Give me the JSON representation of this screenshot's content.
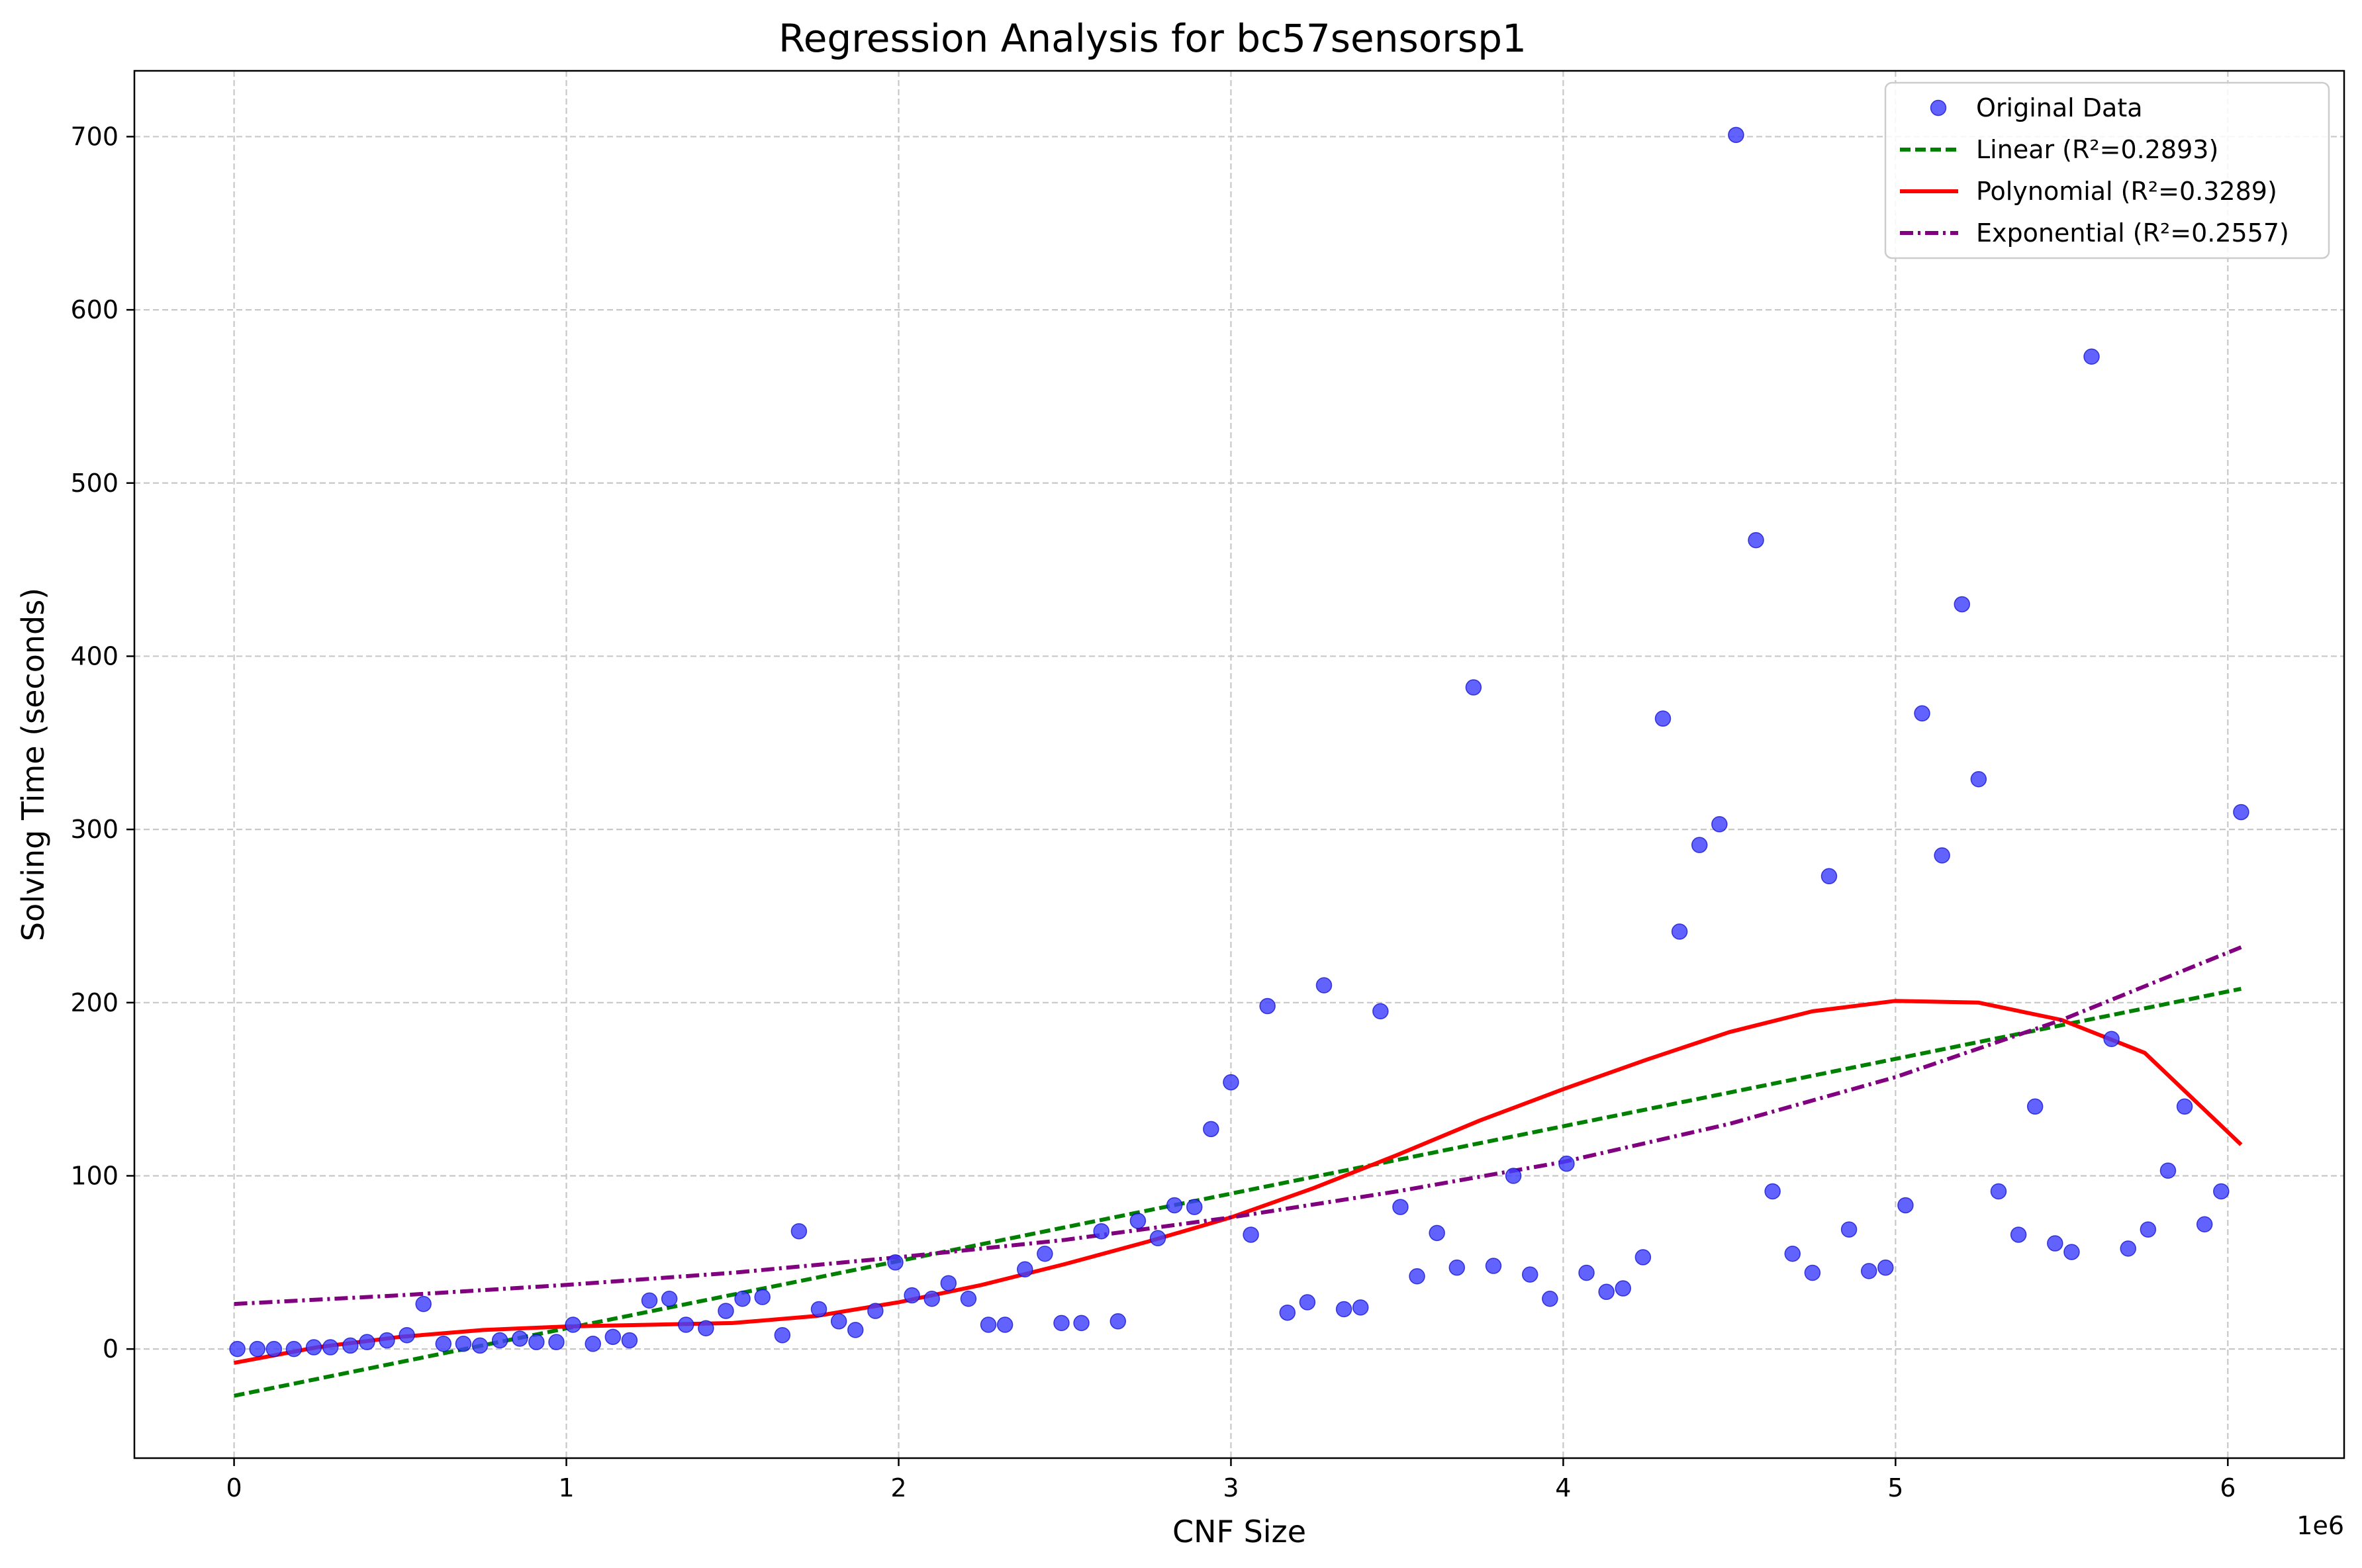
{
  "chart_data": {
    "type": "scatter",
    "title": "Regression Analysis for bc57sensorsp1",
    "xlabel": "CNF Size",
    "ylabel": "Solving Time (seconds)",
    "x_scale_label": "1e6",
    "xlim": [
      -0.3,
      6.35
    ],
    "ylim": [
      -63,
      738
    ],
    "x_ticks": [
      0,
      1,
      2,
      3,
      4,
      5,
      6
    ],
    "x_tick_labels": [
      "0",
      "1",
      "2",
      "3",
      "4",
      "5",
      "6"
    ],
    "y_ticks": [
      0,
      100,
      200,
      300,
      400,
      500,
      600,
      700
    ],
    "y_tick_labels": [
      "0",
      "100",
      "200",
      "300",
      "400",
      "500",
      "600",
      "700"
    ],
    "grid": true,
    "legend_position": "top-right",
    "colors": {
      "points": "#3f3fff",
      "points_edge": "#0000cc",
      "linear": "#008000",
      "polynomial": "#ff0000",
      "exponential": "#800080",
      "grid": "#c8c8c8"
    },
    "series": [
      {
        "name": "Original Data",
        "kind": "scatter",
        "points": [
          [
            0.01,
            0
          ],
          [
            0.07,
            0
          ],
          [
            0.12,
            0
          ],
          [
            0.18,
            0
          ],
          [
            0.24,
            1
          ],
          [
            0.29,
            1
          ],
          [
            0.35,
            2
          ],
          [
            0.4,
            4
          ],
          [
            0.46,
            5
          ],
          [
            0.52,
            8
          ],
          [
            0.57,
            26
          ],
          [
            0.63,
            3
          ],
          [
            0.69,
            3
          ],
          [
            0.74,
            2
          ],
          [
            0.8,
            5
          ],
          [
            0.86,
            6
          ],
          [
            0.91,
            4
          ],
          [
            0.97,
            4
          ],
          [
            1.02,
            14
          ],
          [
            1.08,
            3
          ],
          [
            1.14,
            7
          ],
          [
            1.19,
            5
          ],
          [
            1.25,
            28
          ],
          [
            1.31,
            29
          ],
          [
            1.36,
            14
          ],
          [
            1.42,
            12
          ],
          [
            1.48,
            22
          ],
          [
            1.53,
            29
          ],
          [
            1.59,
            30
          ],
          [
            1.65,
            8
          ],
          [
            1.7,
            68
          ],
          [
            1.76,
            23
          ],
          [
            1.82,
            16
          ],
          [
            1.87,
            11
          ],
          [
            1.93,
            22
          ],
          [
            1.99,
            50
          ],
          [
            2.04,
            31
          ],
          [
            2.1,
            29
          ],
          [
            2.15,
            38
          ],
          [
            2.21,
            29
          ],
          [
            2.27,
            14
          ],
          [
            2.32,
            14
          ],
          [
            2.38,
            46
          ],
          [
            2.44,
            55
          ],
          [
            2.49,
            15
          ],
          [
            2.55,
            15
          ],
          [
            2.61,
            68
          ],
          [
            2.66,
            16
          ],
          [
            2.72,
            74
          ],
          [
            2.78,
            64
          ],
          [
            2.83,
            83
          ],
          [
            2.89,
            82
          ],
          [
            2.94,
            127
          ],
          [
            3.0,
            154
          ],
          [
            3.06,
            66
          ],
          [
            3.11,
            198
          ],
          [
            3.17,
            21
          ],
          [
            3.23,
            27
          ],
          [
            3.28,
            210
          ],
          [
            3.34,
            23
          ],
          [
            3.39,
            24
          ],
          [
            3.45,
            195
          ],
          [
            3.51,
            82
          ],
          [
            3.56,
            42
          ],
          [
            3.62,
            67
          ],
          [
            3.68,
            47
          ],
          [
            3.73,
            382
          ],
          [
            3.79,
            48
          ],
          [
            3.85,
            100
          ],
          [
            3.9,
            43
          ],
          [
            3.96,
            29
          ],
          [
            4.01,
            107
          ],
          [
            4.07,
            44
          ],
          [
            4.13,
            33
          ],
          [
            4.18,
            35
          ],
          [
            4.24,
            53
          ],
          [
            4.3,
            364
          ],
          [
            4.35,
            241
          ],
          [
            4.41,
            291
          ],
          [
            4.47,
            303
          ],
          [
            4.52,
            701
          ],
          [
            4.58,
            467
          ],
          [
            4.63,
            91
          ],
          [
            4.69,
            55
          ],
          [
            4.75,
            44
          ],
          [
            4.8,
            273
          ],
          [
            4.86,
            69
          ],
          [
            4.92,
            45
          ],
          [
            4.97,
            47
          ],
          [
            5.03,
            83
          ],
          [
            5.08,
            367
          ],
          [
            5.14,
            285
          ],
          [
            5.2,
            430
          ],
          [
            5.25,
            329
          ],
          [
            5.31,
            91
          ],
          [
            5.37,
            66
          ],
          [
            5.42,
            140
          ],
          [
            5.48,
            61
          ],
          [
            5.53,
            56
          ],
          [
            5.59,
            573
          ],
          [
            5.65,
            179
          ],
          [
            5.7,
            58
          ],
          [
            5.76,
            69
          ],
          [
            5.82,
            103
          ],
          [
            5.87,
            140
          ],
          [
            5.93,
            72
          ],
          [
            5.98,
            91
          ],
          [
            6.04,
            310
          ]
        ]
      },
      {
        "name": "Linear (R²=0.2893)",
        "kind": "line",
        "dash": "dashed",
        "points": [
          [
            0.0,
            -27
          ],
          [
            6.04,
            208
          ]
        ]
      },
      {
        "name": "Polynomial (R²=0.3289)",
        "kind": "line",
        "dash": "solid",
        "points": [
          [
            0.0,
            -8
          ],
          [
            0.25,
            1
          ],
          [
            0.5,
            7
          ],
          [
            0.75,
            11
          ],
          [
            1.0,
            13
          ],
          [
            1.25,
            14
          ],
          [
            1.5,
            15
          ],
          [
            1.75,
            19
          ],
          [
            2.0,
            27
          ],
          [
            2.25,
            37
          ],
          [
            2.5,
            49
          ],
          [
            2.75,
            62
          ],
          [
            3.0,
            76
          ],
          [
            3.25,
            93
          ],
          [
            3.5,
            112
          ],
          [
            3.75,
            132
          ],
          [
            4.0,
            150
          ],
          [
            4.25,
            167
          ],
          [
            4.5,
            183
          ],
          [
            4.75,
            195
          ],
          [
            5.0,
            201
          ],
          [
            5.25,
            200
          ],
          [
            5.5,
            190
          ],
          [
            5.75,
            171
          ],
          [
            6.04,
            118
          ]
        ]
      },
      {
        "name": "Exponential (R²=0.2557)",
        "kind": "line",
        "dash": "dash-dot",
        "points": [
          [
            0.0,
            26
          ],
          [
            0.5,
            31
          ],
          [
            1.0,
            37
          ],
          [
            1.5,
            44
          ],
          [
            2.0,
            53
          ],
          [
            2.5,
            63
          ],
          [
            3.0,
            76
          ],
          [
            3.5,
            91
          ],
          [
            4.0,
            108
          ],
          [
            4.5,
            130
          ],
          [
            5.0,
            157
          ],
          [
            5.5,
            190
          ],
          [
            6.04,
            232
          ]
        ]
      }
    ]
  }
}
